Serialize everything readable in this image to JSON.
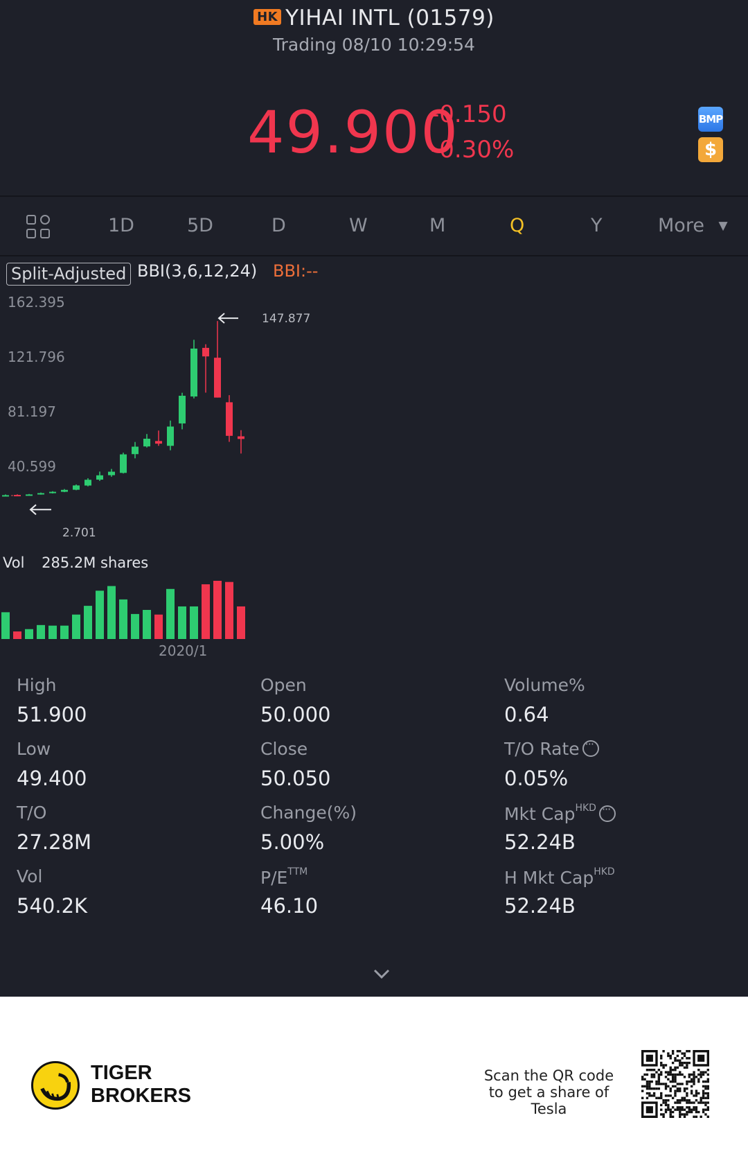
{
  "header": {
    "market_badge": "HK",
    "title": "YIHAI INTL (01579)",
    "subtitle": "Trading 08/10 10:29:54",
    "price": "49.900",
    "change": "-0.150",
    "change_pct": "-0.30%",
    "badges": [
      "BMP",
      "$"
    ],
    "colors": {
      "down": "#f0364e",
      "up": "#2ecc71",
      "accent": "#f5c125"
    }
  },
  "tabs": {
    "layout_icon": "grid-layout-icon",
    "items": [
      "1D",
      "5D",
      "D",
      "W",
      "M",
      "Q",
      "Y"
    ],
    "active": "Q",
    "more_label": "More"
  },
  "chart_header": {
    "adjust_label": "Split-Adjusted",
    "indicator": "BBI(3,6,12,24)",
    "indicator_value": "BBI:--"
  },
  "chart_data": {
    "type": "candlestick",
    "y_ticks": [
      "162.395",
      "121.796",
      "81.197",
      "40.599"
    ],
    "ylim": [
      0,
      170
    ],
    "high_annotation": "147.877",
    "low_annotation": "2.701",
    "x_label": "2020/1",
    "candles": [
      {
        "open": 3.0,
        "close": 3.2,
        "high": 3.8,
        "low": 2.8,
        "dir": "up"
      },
      {
        "open": 3.4,
        "close": 3.1,
        "high": 3.9,
        "low": 2.7,
        "dir": "down"
      },
      {
        "open": 3.0,
        "close": 3.8,
        "high": 4.2,
        "low": 2.9,
        "dir": "up"
      },
      {
        "open": 3.8,
        "close": 4.9,
        "high": 5.4,
        "low": 3.6,
        "dir": "up"
      },
      {
        "open": 4.9,
        "close": 6.0,
        "high": 6.5,
        "low": 4.6,
        "dir": "up"
      },
      {
        "open": 6.0,
        "close": 7.6,
        "high": 8.3,
        "low": 5.7,
        "dir": "up"
      },
      {
        "open": 7.7,
        "close": 11.3,
        "high": 12.1,
        "low": 7.3,
        "dir": "up"
      },
      {
        "open": 11.2,
        "close": 16.0,
        "high": 17.3,
        "low": 10.5,
        "dir": "up"
      },
      {
        "open": 16.1,
        "close": 19.7,
        "high": 22.8,
        "low": 15.0,
        "dir": "up"
      },
      {
        "open": 19.8,
        "close": 22.7,
        "high": 25.0,
        "low": 18.5,
        "dir": "up"
      },
      {
        "open": 21.7,
        "close": 37.1,
        "high": 38.5,
        "low": 21.2,
        "dir": "up"
      },
      {
        "open": 37.3,
        "close": 43.5,
        "high": 47.4,
        "low": 33.8,
        "dir": "up"
      },
      {
        "open": 43.7,
        "close": 50.1,
        "high": 54.0,
        "low": 42.8,
        "dir": "up"
      },
      {
        "open": 48.2,
        "close": 46.0,
        "high": 56.9,
        "low": 44.2,
        "dir": "down"
      },
      {
        "open": 44.2,
        "close": 60.2,
        "high": 65.2,
        "low": 40.5,
        "dir": "up"
      },
      {
        "open": 62.8,
        "close": 85.8,
        "high": 88.3,
        "low": 57.9,
        "dir": "up"
      },
      {
        "open": 85.2,
        "close": 125.0,
        "high": 132.3,
        "low": 83.6,
        "dir": "up"
      },
      {
        "open": 125.6,
        "close": 118.5,
        "high": 128.6,
        "low": 88.4,
        "dir": "down"
      },
      {
        "open": 117.4,
        "close": 84.3,
        "high": 147.9,
        "low": 84.3,
        "dir": "down"
      },
      {
        "open": 80.4,
        "close": 52.5,
        "high": 86.3,
        "low": 47.5,
        "dir": "down"
      },
      {
        "open": 52.1,
        "close": 49.9,
        "high": 57.2,
        "low": 37.8,
        "dir": "down"
      }
    ],
    "volume_label": "Vol",
    "volume_value": "285.2M shares",
    "volumes": [
      {
        "v": 0.46,
        "dir": "up"
      },
      {
        "v": 0.13,
        "dir": "down"
      },
      {
        "v": 0.17,
        "dir": "up"
      },
      {
        "v": 0.24,
        "dir": "up"
      },
      {
        "v": 0.23,
        "dir": "up"
      },
      {
        "v": 0.23,
        "dir": "up"
      },
      {
        "v": 0.42,
        "dir": "up"
      },
      {
        "v": 0.57,
        "dir": "up"
      },
      {
        "v": 0.83,
        "dir": "up"
      },
      {
        "v": 0.91,
        "dir": "up"
      },
      {
        "v": 0.68,
        "dir": "up"
      },
      {
        "v": 0.43,
        "dir": "up"
      },
      {
        "v": 0.5,
        "dir": "up"
      },
      {
        "v": 0.42,
        "dir": "down"
      },
      {
        "v": 0.86,
        "dir": "up"
      },
      {
        "v": 0.56,
        "dir": "up"
      },
      {
        "v": 0.56,
        "dir": "up"
      },
      {
        "v": 0.94,
        "dir": "down"
      },
      {
        "v": 1.0,
        "dir": "down"
      },
      {
        "v": 0.98,
        "dir": "down"
      },
      {
        "v": 0.56,
        "dir": "down"
      }
    ]
  },
  "stats": {
    "high": {
      "label": "High",
      "value": "51.900"
    },
    "open": {
      "label": "Open",
      "value": "50.000"
    },
    "volume_pct": {
      "label": "Volume%",
      "value": "0.64"
    },
    "low": {
      "label": "Low",
      "value": "49.400"
    },
    "close": {
      "label": "Close",
      "value": "50.050"
    },
    "to_rate": {
      "label": "T/O Rate",
      "value": "0.05%"
    },
    "turnover": {
      "label": "T/O",
      "value": "27.28M"
    },
    "change_pct": {
      "label": "Change(%)",
      "value": "5.00%"
    },
    "mkt_cap": {
      "label": "Mkt Cap",
      "sup": "HKD",
      "value": "52.24B"
    },
    "vol": {
      "label": "Vol",
      "value": "540.2K"
    },
    "pe": {
      "label": "P/E",
      "sup": "TTM",
      "value": "46.10"
    },
    "h_mkt_cap": {
      "label": "H Mkt Cap",
      "sup": "HKD",
      "value": "52.24B"
    }
  },
  "footer": {
    "brand_line1": "TIGER",
    "brand_line2": "BROKERS",
    "scan_text": "Scan the QR code to get a share of Tesla"
  }
}
